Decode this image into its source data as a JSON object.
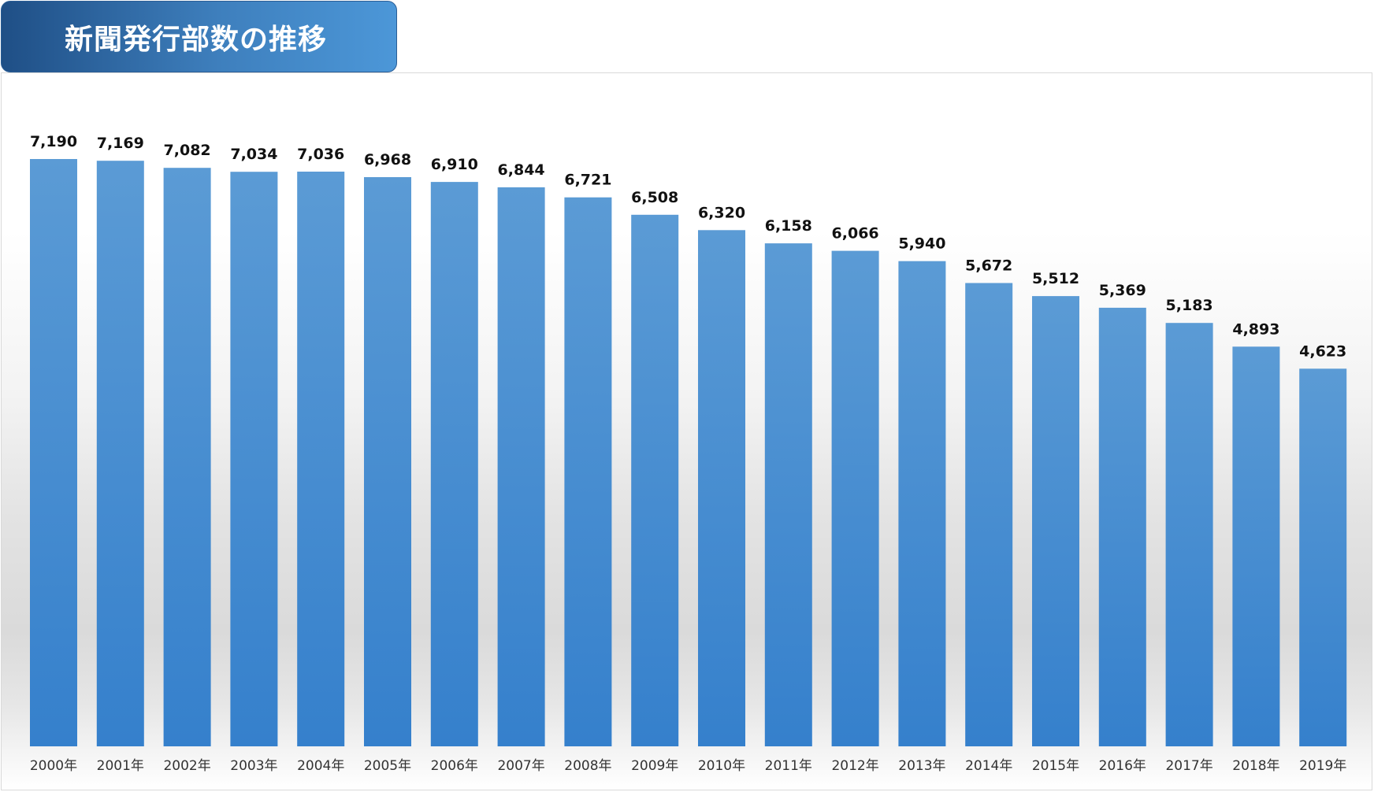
{
  "title": "新聞発行部数の推移",
  "colors": {
    "bar_top": "#5b9bd5",
    "bar_bottom": "#3580cc",
    "title_bg": "#3e7fbd"
  },
  "chart_data": {
    "type": "bar",
    "title": "新聞発行部数の推移",
    "xlabel": "",
    "ylabel": "",
    "ylim": [
      0,
      7190
    ],
    "grid": false,
    "legend": "none",
    "categories": [
      "2000年",
      "2001年",
      "2002年",
      "2003年",
      "2004年",
      "2005年",
      "2006年",
      "2007年",
      "2008年",
      "2009年",
      "2010年",
      "2011年",
      "2012年",
      "2013年",
      "2014年",
      "2015年",
      "2016年",
      "2017年",
      "2018年",
      "2019年"
    ],
    "values": [
      7190,
      7169,
      7082,
      7034,
      7036,
      6968,
      6910,
      6844,
      6721,
      6508,
      6320,
      6158,
      6066,
      5940,
      5672,
      5512,
      5369,
      5183,
      4893,
      4623
    ],
    "value_labels": [
      "7,190",
      "7,169",
      "7,082",
      "7,034",
      "7,036",
      "6,968",
      "6,910",
      "6,844",
      "6,721",
      "6,508",
      "6,320",
      "6,158",
      "6,066",
      "5,940",
      "5,672",
      "5,512",
      "5,369",
      "5,183",
      "4,893",
      "4,623"
    ]
  }
}
